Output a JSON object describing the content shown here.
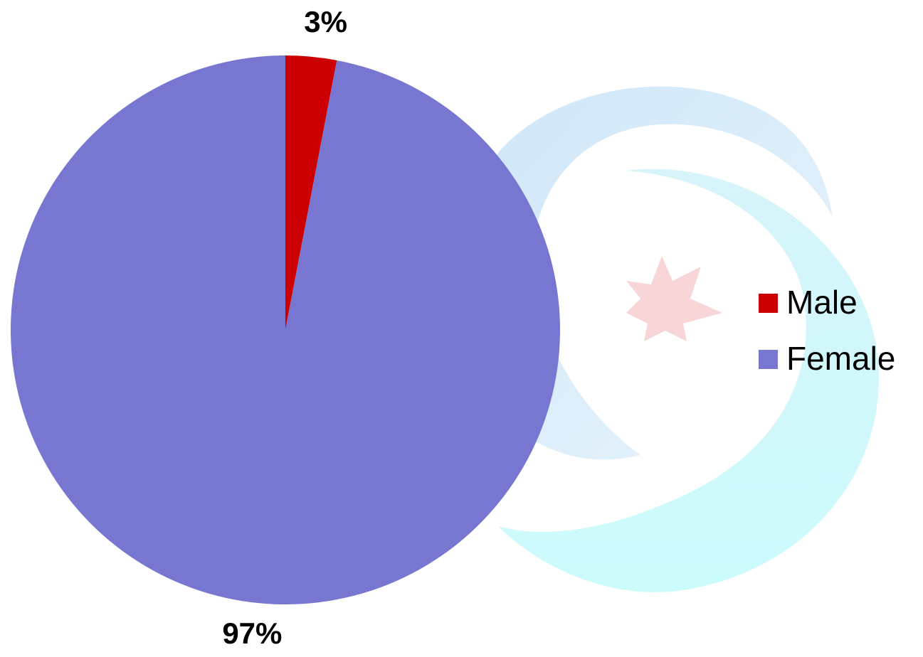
{
  "chart_data": {
    "type": "pie",
    "categories": [
      "Male",
      "Female"
    ],
    "values": [
      3,
      97
    ],
    "value_labels": [
      "3%",
      "97%"
    ],
    "colors": [
      "#cc0000",
      "#7777d1"
    ],
    "legend": "right"
  }
}
